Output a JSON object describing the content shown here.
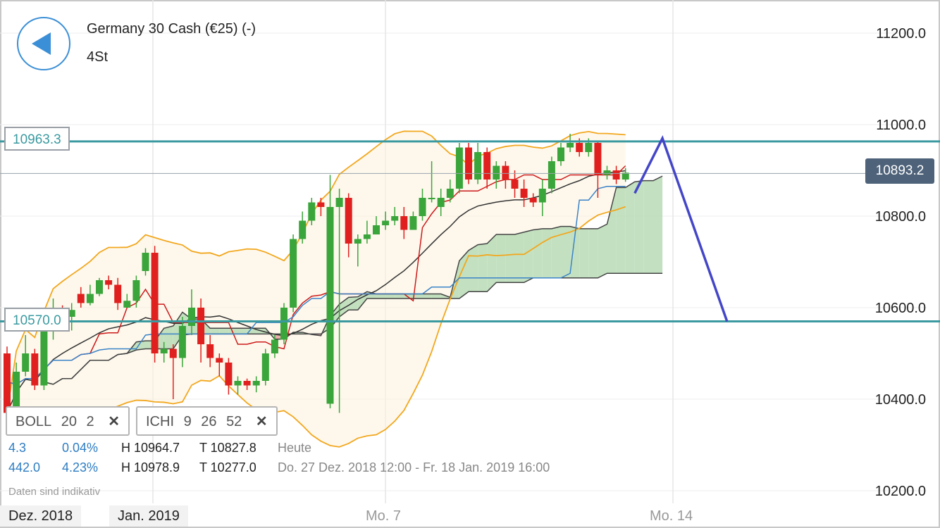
{
  "header": {
    "title": "Germany 30 Cash (€25) (-)",
    "interval": "4St"
  },
  "levels": {
    "upper_label": "10963.3",
    "lower_label": "10570.0",
    "current_price": "10893.2"
  },
  "indicators": {
    "boll": {
      "name": "BOLL",
      "p1": "20",
      "p2": "2"
    },
    "ichi": {
      "name": "ICHI",
      "p1": "9",
      "p2": "26",
      "p3": "52"
    }
  },
  "stats": {
    "row1": {
      "change": "4.3",
      "pct": "0.04%",
      "high": "H 10964.7",
      "low": "T 10827.8",
      "period": "Heute"
    },
    "row2": {
      "change": "442.0",
      "pct": "4.23%",
      "high": "H 10978.9",
      "low": "T 10277.0",
      "period": "Do. 27 Dez. 2018 12:00 - Fr. 18 Jan. 2019 16:00"
    }
  },
  "disclaimer": "Daten sind indikativ",
  "colors": {
    "bull": "#3aa53a",
    "bear": "#e0201e",
    "bollinger": "#f2a71e",
    "level_line": "#3a9aa0",
    "kumo_bull": "#b9dcb6",
    "kumo_bear": "#e7a2a0",
    "trendline": "#4446c8"
  },
  "chart_data": {
    "type": "candlestick",
    "yticks": [
      10200,
      10400,
      10600,
      10800,
      11000,
      11200
    ],
    "ytick_labels": [
      "10200.0",
      "10400.0",
      "10600.0",
      "10800.0",
      "11000.0",
      "11200.0"
    ],
    "ylim": [
      10166,
      11235
    ],
    "xlabels": [
      "Dez. 2018",
      "Jan. 2019",
      "Mo. 7",
      "Mo. 14"
    ],
    "candles": [
      [
        10500,
        10370,
        10515,
        10360
      ],
      [
        10370,
        10460,
        10480,
        10350
      ],
      [
        10460,
        10500,
        10540,
        10450
      ],
      [
        10500,
        10430,
        10510,
        10420
      ],
      [
        10430,
        10560,
        10580,
        10420
      ],
      [
        10560,
        10600,
        10620,
        10530
      ],
      [
        10600,
        10580,
        10605,
        10565
      ],
      [
        10580,
        10595,
        10610,
        10550
      ],
      [
        10630,
        10610,
        10645,
        10600
      ],
      [
        10610,
        10630,
        10650,
        10605
      ],
      [
        10630,
        10660,
        10665,
        10625
      ],
      [
        10660,
        10650,
        10670,
        10640
      ],
      [
        10650,
        10610,
        10665,
        10595
      ],
      [
        10600,
        10615,
        10630,
        10600
      ],
      [
        10615,
        10660,
        10670,
        10600
      ],
      [
        10680,
        10720,
        10730,
        10670
      ],
      [
        10720,
        10500,
        10735,
        10480
      ],
      [
        10500,
        10510,
        10525,
        10480
      ],
      [
        10510,
        10490,
        10520,
        10400
      ],
      [
        10490,
        10560,
        10580,
        10470
      ],
      [
        10560,
        10600,
        10640,
        10540
      ],
      [
        10600,
        10520,
        10620,
        10480
      ],
      [
        10520,
        10490,
        10540,
        10470
      ],
      [
        10490,
        10480,
        10500,
        10450
      ],
      [
        10480,
        10430,
        10490,
        10410
      ],
      [
        10430,
        10440,
        10450,
        10410
      ],
      [
        10440,
        10430,
        10445,
        10420
      ],
      [
        10430,
        10440,
        10450,
        10415
      ],
      [
        10440,
        10500,
        10510,
        10430
      ],
      [
        10500,
        10530,
        10540,
        10490
      ],
      [
        10530,
        10600,
        10610,
        10520
      ],
      [
        10600,
        10750,
        10760,
        10590
      ],
      [
        10750,
        10790,
        10810,
        10740
      ],
      [
        10790,
        10830,
        10840,
        10780
      ],
      [
        10830,
        10820,
        10840,
        10800
      ],
      [
        10390,
        10820,
        10890,
        10380
      ],
      [
        10820,
        10840,
        10860,
        10370
      ],
      [
        10840,
        10740,
        10850,
        10710
      ],
      [
        10740,
        10750,
        10760,
        10690
      ],
      [
        10750,
        10760,
        10790,
        10740
      ],
      [
        10760,
        10780,
        10800,
        10760
      ],
      [
        10780,
        10790,
        10810,
        10770
      ],
      [
        10790,
        10800,
        10820,
        10780
      ],
      [
        10800,
        10770,
        10820,
        10750
      ],
      [
        10770,
        10800,
        10810,
        10770
      ],
      [
        10800,
        10840,
        10860,
        10790
      ],
      [
        10840,
        10840,
        10920,
        10830
      ],
      [
        10820,
        10840,
        10860,
        10800
      ],
      [
        10840,
        10860,
        10880,
        10830
      ],
      [
        10860,
        10950,
        10960,
        10850
      ],
      [
        10950,
        10880,
        10960,
        10870
      ],
      [
        10880,
        10940,
        10960,
        10870
      ],
      [
        10940,
        10880,
        10950,
        10860
      ],
      [
        10880,
        10910,
        10920,
        10860
      ],
      [
        10910,
        10880,
        10920,
        10860
      ],
      [
        10880,
        10860,
        10900,
        10840
      ],
      [
        10860,
        10840,
        10880,
        10820
      ],
      [
        10840,
        10830,
        10850,
        10820
      ],
      [
        10830,
        10860,
        10880,
        10800
      ],
      [
        10860,
        10920,
        10930,
        10850
      ],
      [
        10920,
        10950,
        10960,
        10910
      ],
      [
        10950,
        10960,
        10980,
        10940
      ],
      [
        10960,
        10940,
        10970,
        10930
      ],
      [
        10940,
        10960,
        10970,
        10930
      ],
      [
        10960,
        10890,
        10965,
        10840
      ],
      [
        10890,
        10900,
        10910,
        10880
      ],
      [
        10900,
        10880,
        10910,
        10870
      ],
      [
        10880,
        10895,
        10905,
        10875
      ]
    ],
    "trendline": [
      [
        68,
        10850
      ],
      [
        71,
        10970
      ],
      [
        78,
        10570
      ]
    ]
  }
}
